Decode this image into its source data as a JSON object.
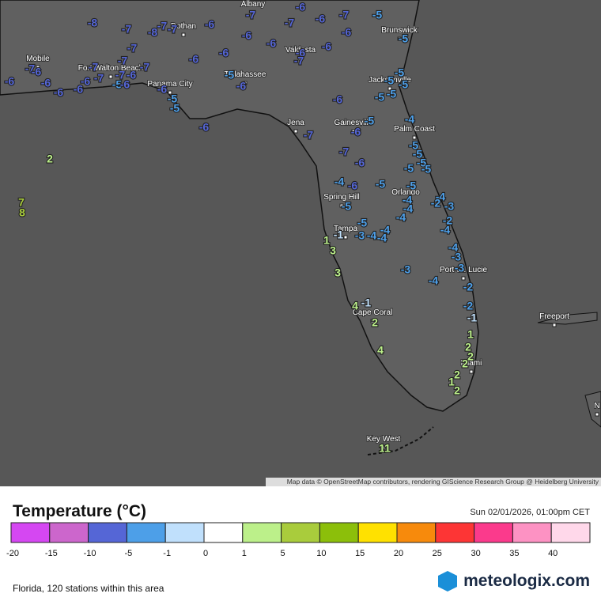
{
  "map": {
    "attribution": "Map data © OpenStreetMap contributors, rendering GIScience Research Group @ Heidelberg University",
    "cities": [
      "Albany",
      "Dothan",
      "Mobile",
      "Fort Walton Beach",
      "Panama City",
      "Tallahassee",
      "Valdosta",
      "Brunswick",
      "Jacksonville",
      "Jena",
      "Gainesville",
      "Palm Coast",
      "Spring Hill",
      "Orlando",
      "Tampa",
      "Port St. Lucie",
      "Cape Coral",
      "Freeport",
      "Miami",
      "Key West",
      "N"
    ],
    "stations": [
      -8,
      -7,
      -8,
      -7,
      -7,
      -6,
      -7,
      -6,
      -6,
      -7,
      -5,
      -6,
      -6,
      -6,
      -7,
      -7,
      -6,
      -6,
      -6,
      -6,
      -7,
      -5,
      -5,
      -6,
      -7,
      -6,
      -6,
      -6,
      -6,
      -6,
      -7,
      -7,
      -7,
      -7,
      -6,
      -7,
      -5,
      -6,
      -6,
      -5,
      -5,
      -6,
      -5,
      -6,
      -5,
      -5,
      -5,
      -5,
      -6,
      -4,
      -5,
      -6,
      -7,
      -7,
      -6,
      -5,
      -5,
      -5,
      -5,
      -5,
      -4,
      -6,
      -5,
      -5,
      -4,
      -4,
      -5,
      -5,
      -4,
      -4,
      -2,
      -3,
      -2,
      -4,
      -4,
      -4,
      -4,
      -3,
      -1,
      -4,
      -3,
      -3,
      -2,
      -3,
      -4,
      -2,
      1,
      3,
      3,
      -1,
      4,
      2,
      4,
      1,
      2,
      2,
      2,
      2,
      1,
      2,
      1,
      1,
      2,
      7,
      8,
      -1
    ]
  },
  "legend": {
    "title": "Temperature (°C)",
    "time": "Sun 02/01/2026, 01:00pm CET",
    "ticks": [
      -20,
      -15,
      -10,
      -5,
      -1,
      0,
      1,
      5,
      10,
      15,
      20,
      25,
      30,
      35,
      40
    ],
    "colors": [
      "#d547f2",
      "#cc66cc",
      "#5566d6",
      "#4d9fe8",
      "#c0e0fc",
      "#ffffff",
      "#bcf08a",
      "#a9cc3c",
      "#8cbf0a",
      "#ffe100",
      "#f78a0c",
      "#fd3535",
      "#fb3a8c",
      "#fd92c3",
      "#ffd8ea"
    ]
  },
  "footer": {
    "area": "Florida, 120 stations within this area",
    "brand": "meteologix.com"
  }
}
